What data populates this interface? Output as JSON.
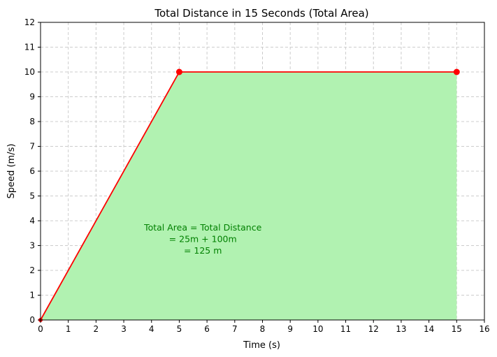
{
  "chart_data": {
    "type": "area",
    "title": "Total Distance in 15 Seconds (Total Area)",
    "xlabel": "Time (s)",
    "ylabel": "Speed (m/s)",
    "xlim": [
      0,
      16
    ],
    "ylim": [
      0,
      12
    ],
    "xticks": [
      "0",
      "1",
      "2",
      "3",
      "4",
      "5",
      "6",
      "7",
      "8",
      "9",
      "10",
      "11",
      "12",
      "13",
      "14",
      "15",
      "16"
    ],
    "yticks": [
      "0",
      "1",
      "2",
      "3",
      "4",
      "5",
      "6",
      "7",
      "8",
      "9",
      "10",
      "11",
      "12"
    ],
    "grid": true,
    "series": [
      {
        "x": [
          0,
          5,
          15
        ],
        "y": [
          0,
          10,
          10
        ],
        "color": "#ff0000",
        "fill_color": "#b1f2b1",
        "markers": [
          5,
          15
        ]
      }
    ],
    "annotation": {
      "lines": [
        "Total Area = Total Distance",
        "= 25m + 100m",
        "= 125 m"
      ],
      "x": 5.85,
      "y": 3.6,
      "color": "#008000"
    }
  }
}
